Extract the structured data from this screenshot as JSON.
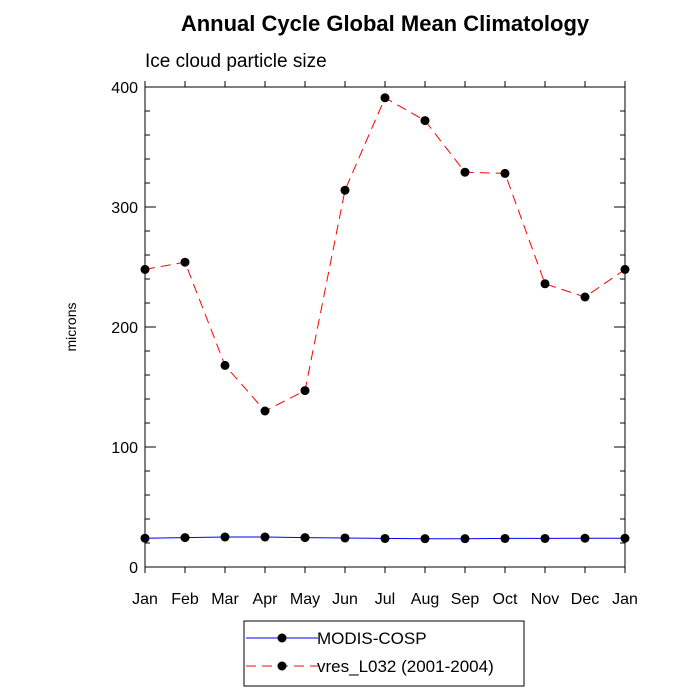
{
  "chart_data": {
    "type": "line",
    "title": "Annual Cycle Global Mean Climatology",
    "subtitle": "Ice cloud particle size",
    "xlabel": "",
    "ylabel": "microns",
    "categories": [
      "Jan",
      "Feb",
      "Mar",
      "Apr",
      "May",
      "Jun",
      "Jul",
      "Aug",
      "Sep",
      "Oct",
      "Nov",
      "Dec",
      "Jan"
    ],
    "ylim": [
      0,
      400
    ],
    "yticks": [
      "0",
      "100",
      "200",
      "300",
      "400"
    ],
    "grid": false,
    "legend_position": "bottom",
    "series": [
      {
        "name": "MODIS-COSP",
        "color": "#0000ff",
        "line_style": "solid",
        "values": [
          24,
          24.5,
          25,
          25,
          24.5,
          24.2,
          23.8,
          23.6,
          23.6,
          23.8,
          23.8,
          24,
          24
        ]
      },
      {
        "name": "vres_L032 (2001-2004)",
        "color": "#ff0000",
        "line_style": "dashed",
        "values": [
          248,
          254,
          168,
          130,
          147,
          314,
          391,
          372,
          329,
          328,
          236,
          225,
          248
        ]
      }
    ]
  }
}
